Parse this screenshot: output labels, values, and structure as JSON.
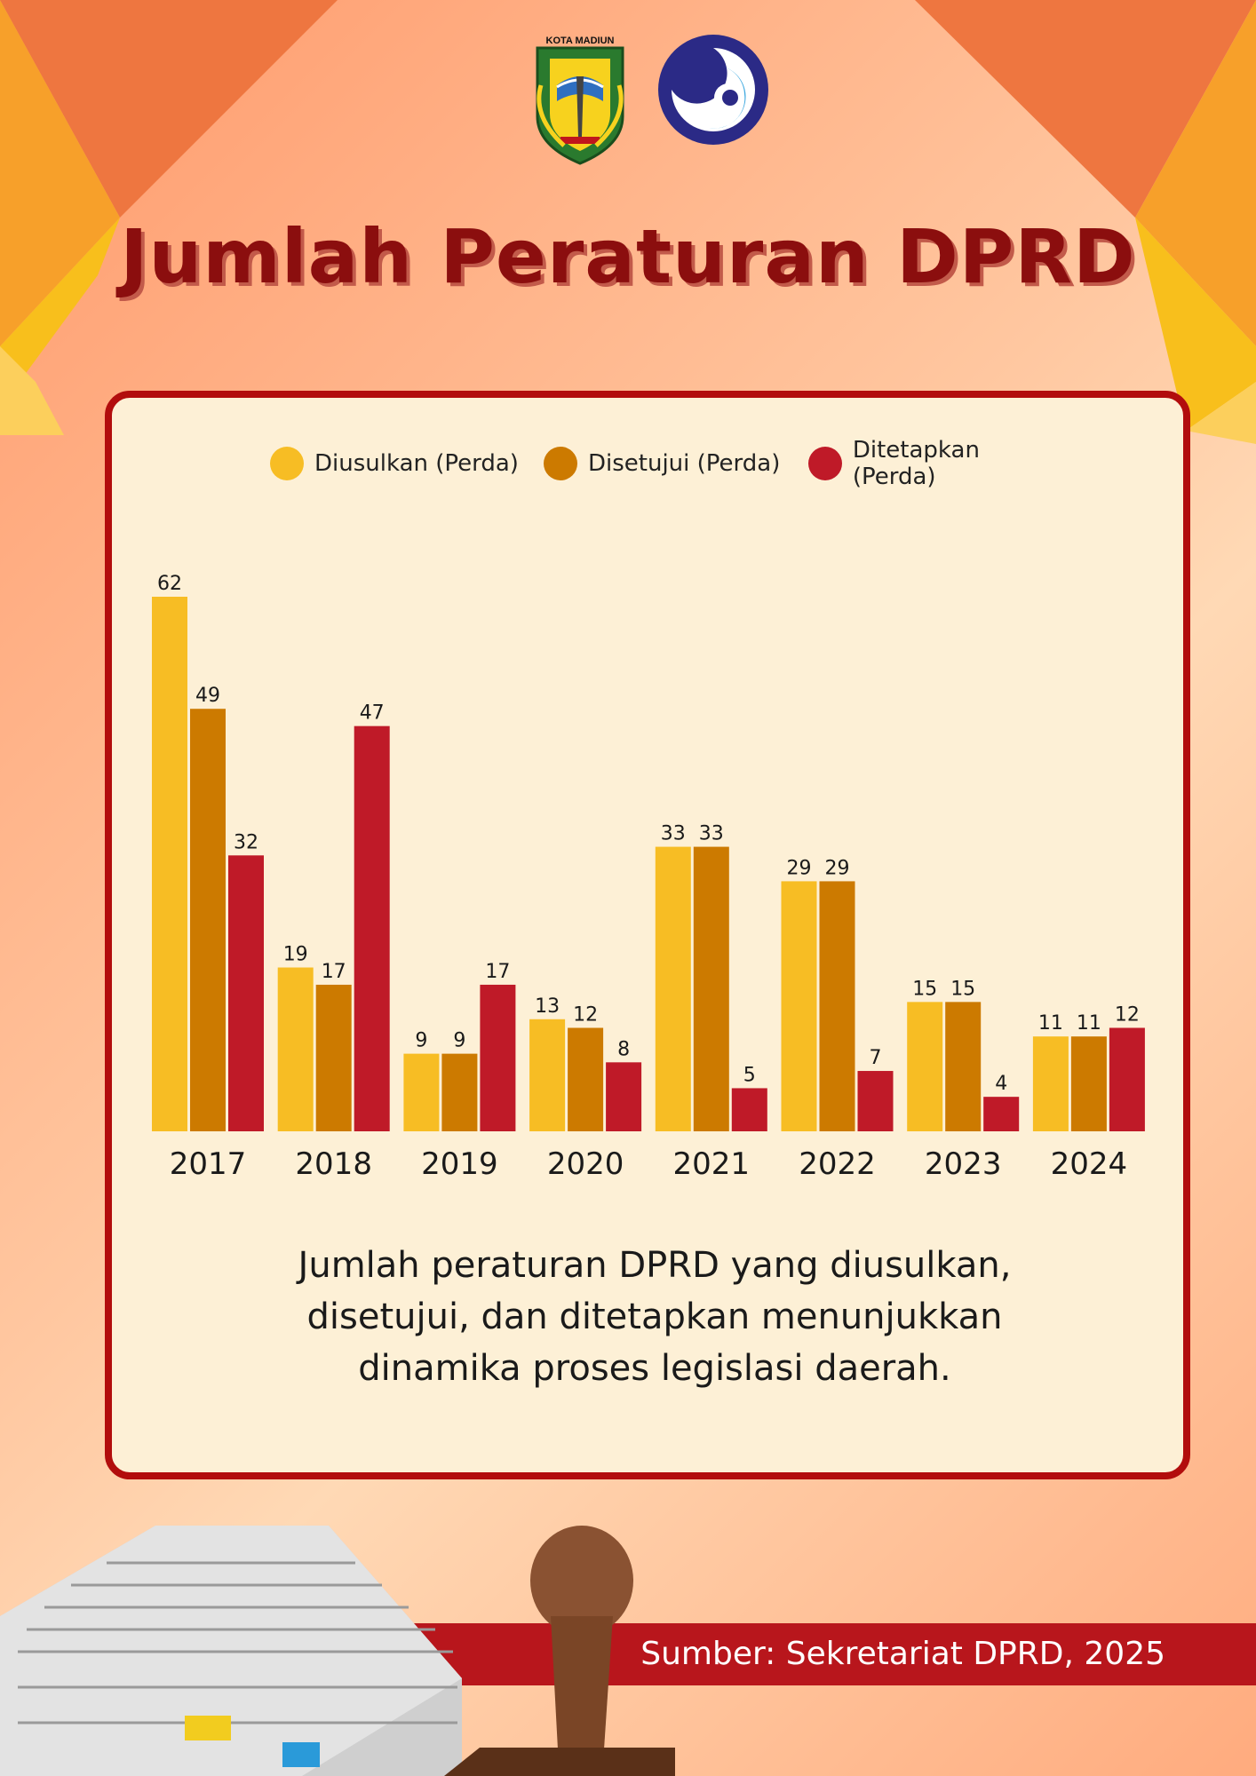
{
  "header": {
    "logo_kota_text": "KOTA MADIUN",
    "logo_kota_name": "kota-madiun-logo",
    "logo_kominfo_name": "kominfo-logo",
    "title": "Jumlah Peraturan DPRD"
  },
  "colors": {
    "diusulkan": "#f7bd24",
    "disetujui": "#cc7a00",
    "ditetapkan": "#bf1a28",
    "card_border": "#b20d0d",
    "title": "#8b0e0e"
  },
  "chart_data": {
    "type": "bar",
    "categories": [
      "2017",
      "2018",
      "2019",
      "2020",
      "2021",
      "2022",
      "2023",
      "2024"
    ],
    "series": [
      {
        "name": "Diusulkan (Perda)",
        "values": [
          62,
          19,
          9,
          13,
          33,
          29,
          15,
          11
        ]
      },
      {
        "name": "Disetujui (Perda)",
        "values": [
          49,
          17,
          9,
          12,
          33,
          29,
          15,
          11
        ]
      },
      {
        "name": "Ditetapkan (Perda)",
        "values": [
          32,
          47,
          17,
          8,
          5,
          7,
          4,
          12
        ]
      }
    ],
    "title": "",
    "xlabel": "",
    "ylabel": "",
    "ylim": [
      0,
      62
    ],
    "grid": false,
    "legend": "top",
    "data_labels": true
  },
  "caption": {
    "line1": "Jumlah peraturan DPRD yang diusulkan,",
    "line2": "disetujui, dan ditetapkan menunjukkan",
    "line3": "dinamika proses legislasi daerah."
  },
  "footer": {
    "source": "Sumber: Sekretariat DPRD, 2025"
  }
}
